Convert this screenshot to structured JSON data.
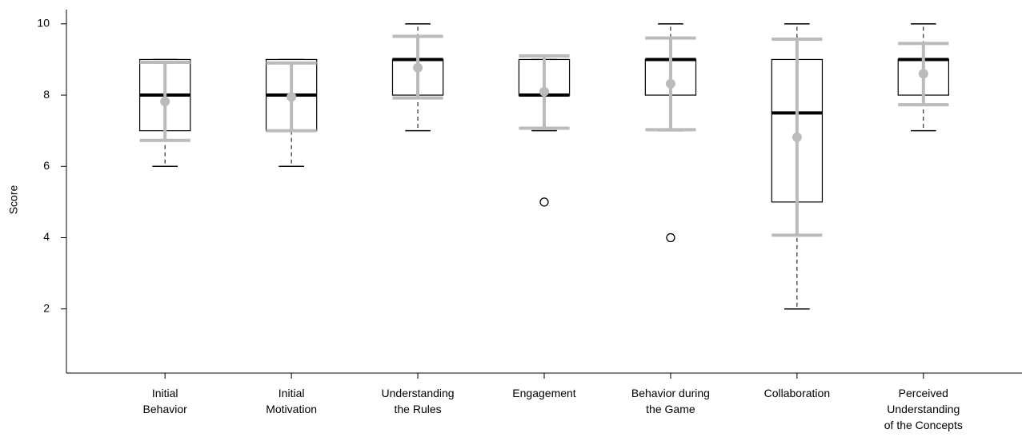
{
  "chart_data": {
    "type": "box",
    "y_label": "Score",
    "categories": [
      "Initial\nBehavior",
      "Initial\nMotivation",
      "Understanding\nthe Rules",
      "Engagement",
      "Behavior during\nthe Game",
      "Collaboration",
      "Perceived\nUnderstanding\nof the Concepts"
    ],
    "boxes": [
      {
        "min": 6,
        "q1": 7,
        "median": 8,
        "q3": 9,
        "max": 9,
        "outliers": [],
        "mean": 7.82,
        "mean_low": 6.73,
        "mean_high": 8.92
      },
      {
        "min": 6,
        "q1": 7,
        "median": 8,
        "q3": 9,
        "max": 9,
        "outliers": [],
        "mean": 7.95,
        "mean_low": 7.0,
        "mean_high": 8.9
      },
      {
        "min": 7,
        "q1": 8,
        "median": 9,
        "q3": 9,
        "max": 10,
        "outliers": [],
        "mean": 8.77,
        "mean_low": 7.92,
        "mean_high": 9.65
      },
      {
        "min": 7,
        "q1": 8,
        "median": 8,
        "q3": 9,
        "max": 9,
        "outliers": [
          5
        ],
        "mean": 8.1,
        "mean_low": 7.07,
        "mean_high": 9.1
      },
      {
        "min": 7,
        "q1": 8,
        "median": 9,
        "q3": 9,
        "max": 10,
        "outliers": [
          4
        ],
        "mean": 8.32,
        "mean_low": 7.03,
        "mean_high": 9.6
      },
      {
        "min": 2,
        "q1": 5,
        "median": 7.5,
        "q3": 9,
        "max": 10,
        "outliers": [],
        "mean": 6.82,
        "mean_low": 4.07,
        "mean_high": 9.57
      },
      {
        "min": 7,
        "q1": 8,
        "median": 9,
        "q3": 9,
        "max": 10,
        "outliers": [],
        "mean": 8.6,
        "mean_low": 7.73,
        "mean_high": 9.45
      }
    ],
    "box_color": "#000000",
    "mean_color": "#bbbbbb",
    "ylim": [
      0.2,
      10.4
    ],
    "yticks": [
      2,
      4,
      6,
      8,
      10
    ],
    "grid": false
  }
}
